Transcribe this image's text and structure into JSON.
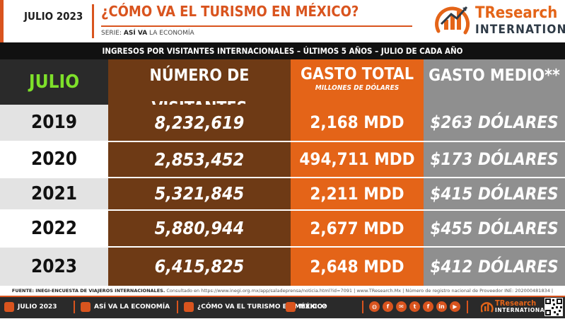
{
  "header": {
    "month": "JULIO 2023",
    "title": "¿CÓMO VA EL TURISMO EN MÉXICO?",
    "series_prefix": "SERIE:",
    "series_name": "ASÍ VA",
    "series_rest": "LA ECONOMÍA"
  },
  "logo": {
    "text_main": "TResearch",
    "text_sub": "INTERNATIONAL"
  },
  "subtitle": "INGRESOS POR VISITANTES INTERNACIONALES – ÚLTIMOS 5 AÑOS – JULIO DE CADA AÑO",
  "table": {
    "headers": {
      "month": "JULIO",
      "visitors": "NÚMERO DE VISITANTES",
      "spending": "GASTO TOTAL",
      "spending_sub": "MILLONES DE DÓLARES",
      "average": "GASTO MEDIO**"
    },
    "rows": [
      {
        "year": "2019",
        "visitors": "8,232,619",
        "spending": "2,168 MDD",
        "average": "$263 DÓLARES"
      },
      {
        "year": "2020",
        "visitors": "2,853,452",
        "spending": "494,711 MDD",
        "average": "$173 DÓLARES"
      },
      {
        "year": "2021",
        "visitors": "5,321,845",
        "spending": "2,211 MDD",
        "average": "$415 DÓLARES"
      },
      {
        "year": "2022",
        "visitors": "5,880,944",
        "spending": "2,677 MDD",
        "average": "$455 DÓLARES"
      },
      {
        "year": "2023",
        "visitors": "6,415,825",
        "spending": "2,648 MDD",
        "average": "$412 DÓLARES"
      }
    ]
  },
  "source": {
    "label": "FUENTE: INEGI-ENCUESTA DE VIAJEROS INTERNACIONALES.",
    "rest": "Consultado en https://www.inegi.org.mx/app/saladeprensa/noticia.html?id=7091 | www.TResearch.Mx | Número de registro nacional de Proveedor INE: 202000481834 |"
  },
  "footer": {
    "month": "JULIO 2023",
    "series": "ASÍ VA LA ECONOMÍA",
    "title": "¿CÓMO VA EL TURISMO EN MÉXICO?",
    "country": "MÉXICO",
    "social": [
      "web",
      "facebook",
      "email",
      "twitter",
      "facebook",
      "linkedin",
      "youtube"
    ],
    "logo_main": "TResearch",
    "logo_sub": "INTERNATIONAL"
  },
  "colors": {
    "orange": "#e46418",
    "brown": "#6e3a15",
    "gray": "#8f8f8f",
    "green": "#7ee02a",
    "dark": "#2a2a2a"
  }
}
